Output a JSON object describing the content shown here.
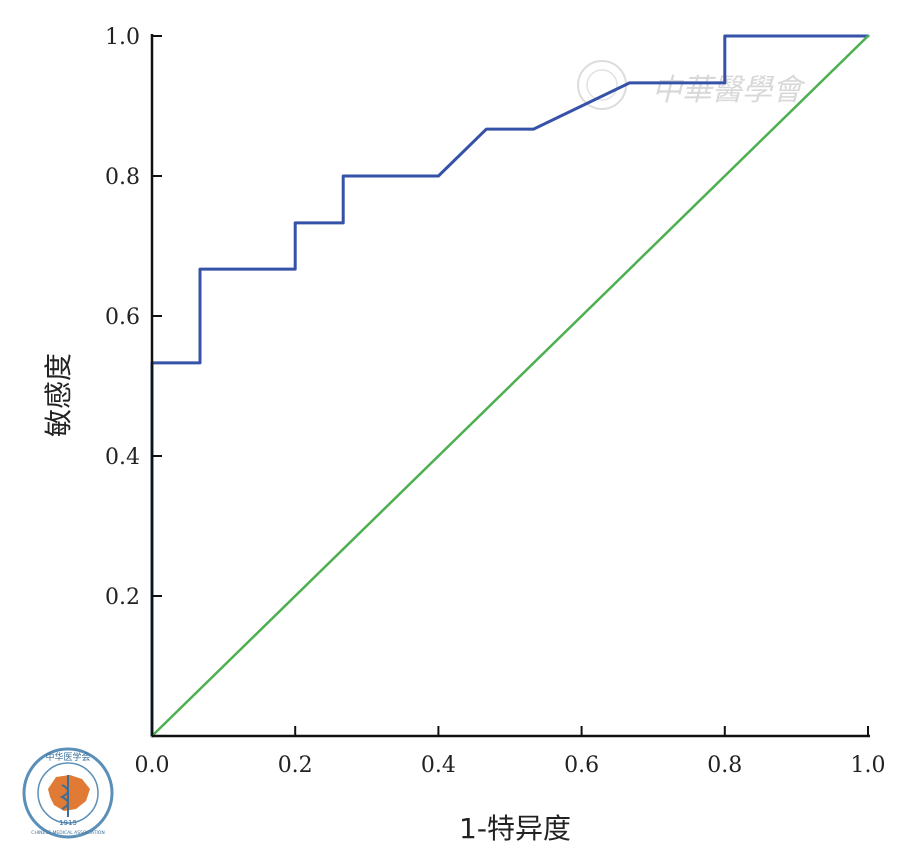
{
  "chart_data": {
    "type": "line",
    "xlabel": "1-特异度",
    "ylabel": "敏感度",
    "xlim": [
      0,
      1
    ],
    "ylim": [
      0,
      1
    ],
    "x_ticks": [
      "0.0",
      "0.2",
      "0.4",
      "0.6",
      "0.8",
      "1.0"
    ],
    "y_ticks": [
      "0.2",
      "0.4",
      "0.6",
      "0.8",
      "1.0"
    ],
    "grid": false,
    "series": [
      {
        "color": "#3652a8",
        "x": [
          0.0,
          0.0,
          0.067,
          0.067,
          0.2,
          0.2,
          0.267,
          0.267,
          0.4,
          0.467,
          0.533,
          0.667,
          0.8,
          0.8,
          1.0
        ],
        "y": [
          0.0,
          0.533,
          0.533,
          0.667,
          0.667,
          0.733,
          0.733,
          0.8,
          0.8,
          0.867,
          0.867,
          0.933,
          0.933,
          1.0,
          1.0
        ]
      },
      {
        "color": "#4caf50",
        "x": [
          0.0,
          1.0
        ],
        "y": [
          0.0,
          1.0
        ]
      }
    ]
  },
  "watermark": {
    "text": "中華醫學會",
    "color": "#d8d8d8"
  },
  "logo": {
    "text": "中华医学会",
    "year": "1915",
    "english": "CHINESE MEDICAL ASSOCIATION",
    "color": "#e07a35"
  }
}
